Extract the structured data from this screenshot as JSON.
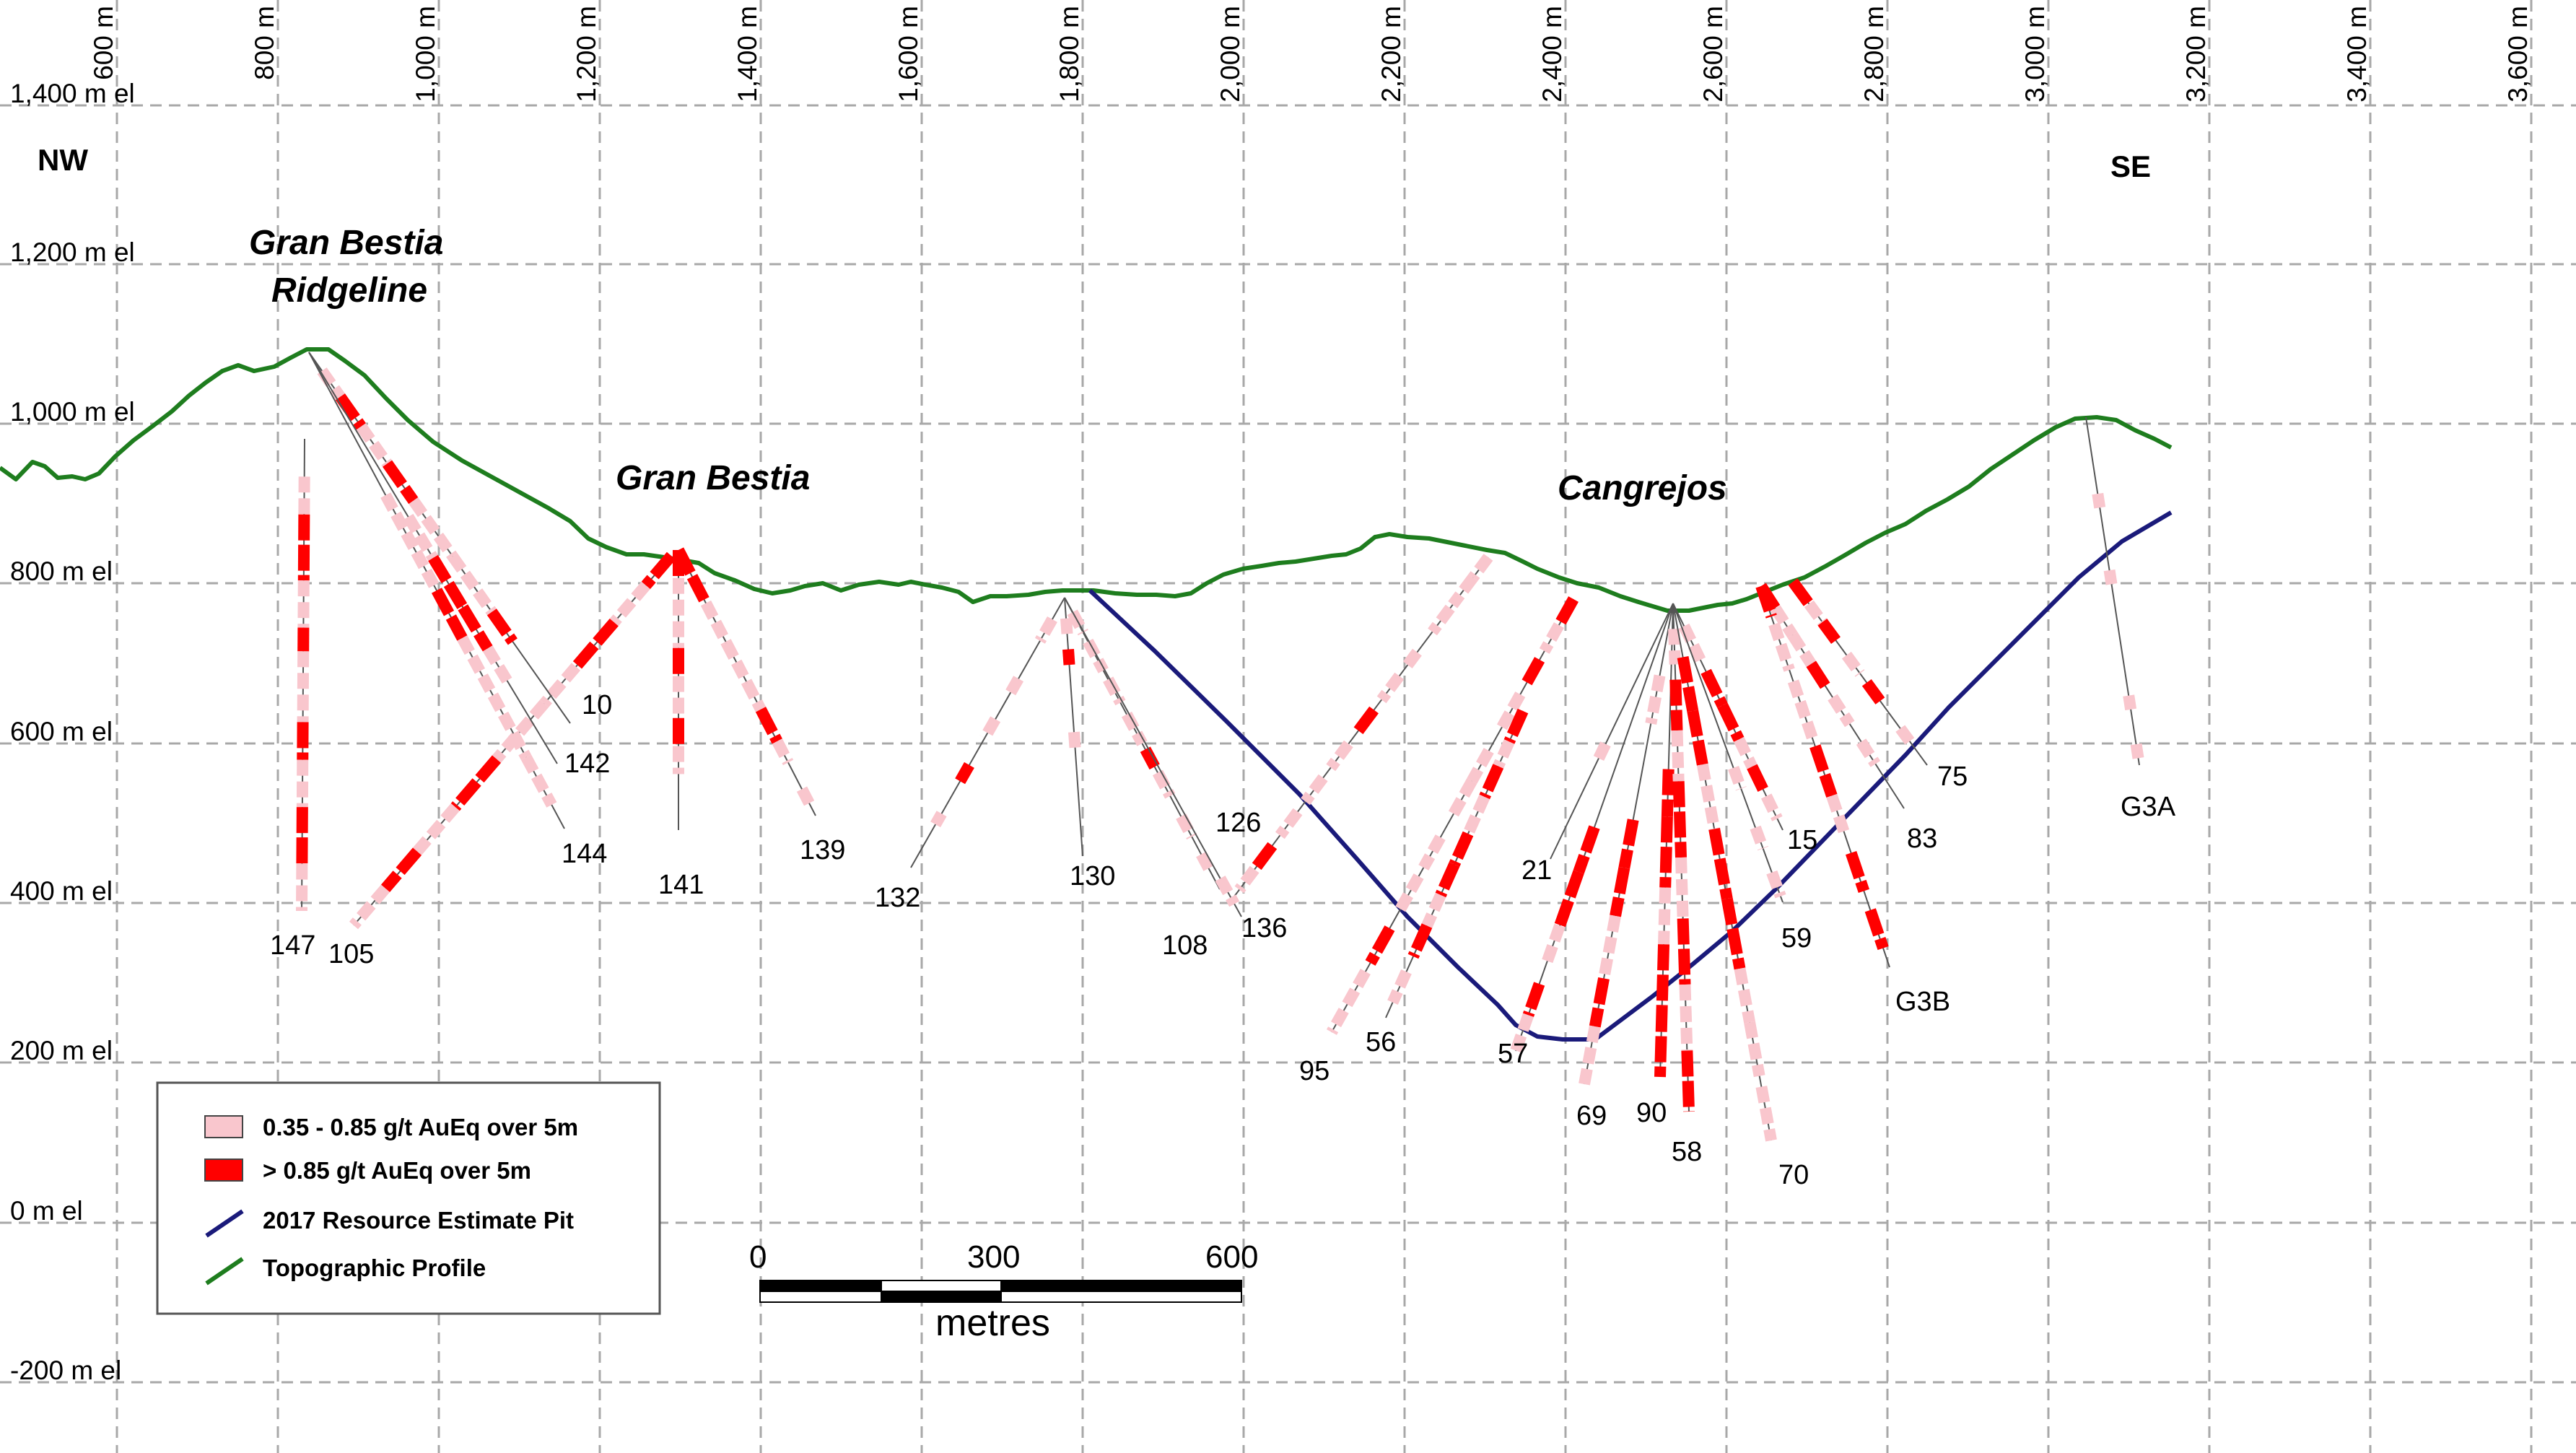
{
  "elevation_labels": [
    "1,400 m el",
    "1,200 m el",
    "1,000 m el",
    "800 m el",
    "600 m el",
    "400 m el",
    "200 m el",
    "0 m el",
    "-200 m el"
  ],
  "easting_labels": [
    "600 m",
    "800 m",
    "1,000 m",
    "1,200 m",
    "1,400 m",
    "1,600 m",
    "1,800 m",
    "2,000 m",
    "2,200 m",
    "2,400 m",
    "2,600 m",
    "2,800 m",
    "3,000 m",
    "3,200 m",
    "3,400 m",
    "3,600 m"
  ],
  "direction": {
    "west": "NW",
    "east": "SE"
  },
  "zones": {
    "ridgeline_line1": "Gran Bestia",
    "ridgeline_line2": "Ridgeline",
    "gran_bestia": "Gran Bestia",
    "cangrejos": "Cangrejos"
  },
  "drill_holes": [
    {
      "id": "147",
      "label": "147"
    },
    {
      "id": "105",
      "label": "105"
    },
    {
      "id": "10",
      "label": "10"
    },
    {
      "id": "142",
      "label": "142"
    },
    {
      "id": "144",
      "label": "144"
    },
    {
      "id": "141",
      "label": "141"
    },
    {
      "id": "139",
      "label": "139"
    },
    {
      "id": "132",
      "label": "132"
    },
    {
      "id": "130",
      "label": "130"
    },
    {
      "id": "126",
      "label": "126"
    },
    {
      "id": "108",
      "label": "108"
    },
    {
      "id": "136",
      "label": "136"
    },
    {
      "id": "95",
      "label": "95"
    },
    {
      "id": "56",
      "label": "56"
    },
    {
      "id": "21",
      "label": "21"
    },
    {
      "id": "57",
      "label": "57"
    },
    {
      "id": "69",
      "label": "69"
    },
    {
      "id": "90",
      "label": "90"
    },
    {
      "id": "58",
      "label": "58"
    },
    {
      "id": "70",
      "label": "70"
    },
    {
      "id": "15",
      "label": "15"
    },
    {
      "id": "59",
      "label": "59"
    },
    {
      "id": "83",
      "label": "83"
    },
    {
      "id": "75",
      "label": "75"
    },
    {
      "id": "G3B",
      "label": "G3B"
    },
    {
      "id": "G3A",
      "label": "G3A"
    }
  ],
  "legend": {
    "items": [
      {
        "key": "low_grade",
        "label": "0.35 - 0.85 g/t AuEq over 5m",
        "color": "#f9c6cd"
      },
      {
        "key": "high_grade",
        "label": "> 0.85 g/t AuEq over 5m",
        "color": "#ff0000"
      },
      {
        "key": "pit",
        "label": "2017 Resource Estimate Pit",
        "color": "#1a1a7a"
      },
      {
        "key": "topo",
        "label": "Topographic Profile",
        "color": "#1e7d1e"
      }
    ]
  },
  "scale_bar": {
    "tick_0": "0",
    "tick_mid": "300",
    "tick_end": "600",
    "unit": "metres"
  },
  "colors": {
    "grid": "#a8a8a8",
    "trace": "#555555",
    "low_grade": "#f9c6cd",
    "high_grade": "#ff0000",
    "pit": "#1a1a7a",
    "topo": "#1e7d1e"
  }
}
